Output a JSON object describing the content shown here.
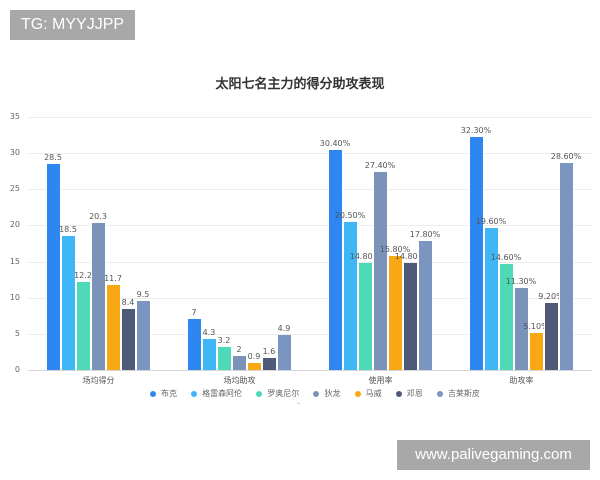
{
  "watermarks": {
    "top_left": "TG: MYYJJPP",
    "bottom_right": "www.palivegaming.com"
  },
  "chart_data": {
    "type": "bar",
    "title": "太阳七名主力的得分助攻表现",
    "xlabel": "",
    "ylabel": "",
    "ylim": [
      0,
      35
    ],
    "yticks": [
      "0",
      "5",
      "10",
      "15",
      "20",
      "25",
      "30",
      "35"
    ],
    "grid": true,
    "legend_position": "bottom",
    "categories": [
      "场均得分",
      "场均助攻",
      "使用率",
      "助攻率"
    ],
    "series": [
      {
        "name": "布克",
        "color": "#2e86f0",
        "values": [
          28.5,
          7,
          30.4,
          32.3
        ],
        "labels": [
          "28.5",
          "7",
          "30.40%",
          "32.30%"
        ]
      },
      {
        "name": "格雷森阿伦",
        "color": "#3fb6f5",
        "values": [
          18.5,
          4.3,
          20.5,
          19.6
        ],
        "labels": [
          "18.5",
          "4.3",
          "20.50%",
          "19.60%"
        ]
      },
      {
        "name": "罗奥尼尔",
        "color": "#4ed9b8",
        "values": [
          12.2,
          3.2,
          14.8,
          14.6
        ],
        "labels": [
          "12.2",
          "3.2",
          "14.80%",
          "14.60%"
        ]
      },
      {
        "name": "狄龙",
        "color": "#7b93b8",
        "values": [
          20.3,
          2,
          27.4,
          11.3
        ],
        "labels": [
          "20.3",
          "2",
          "27.40%",
          "11.30%"
        ]
      },
      {
        "name": "马威",
        "color": "#f7a813",
        "values": [
          11.7,
          0.9,
          15.8,
          5.1
        ],
        "labels": [
          "11.7",
          "0.9",
          "15.80%",
          "5.10%"
        ]
      },
      {
        "name": "邓恩",
        "color": "#4f5a78",
        "values": [
          8.4,
          1.6,
          14.8,
          9.2
        ],
        "labels": [
          "8.4",
          "1.6",
          "14.80%",
          "9.20%"
        ]
      },
      {
        "name": "吉莱斯皮",
        "color": "#7a96c0",
        "values": [
          9.5,
          4.9,
          17.8,
          28.6
        ],
        "labels": [
          "9.5",
          "4.9",
          "17.80%",
          "28.60%"
        ]
      }
    ]
  }
}
